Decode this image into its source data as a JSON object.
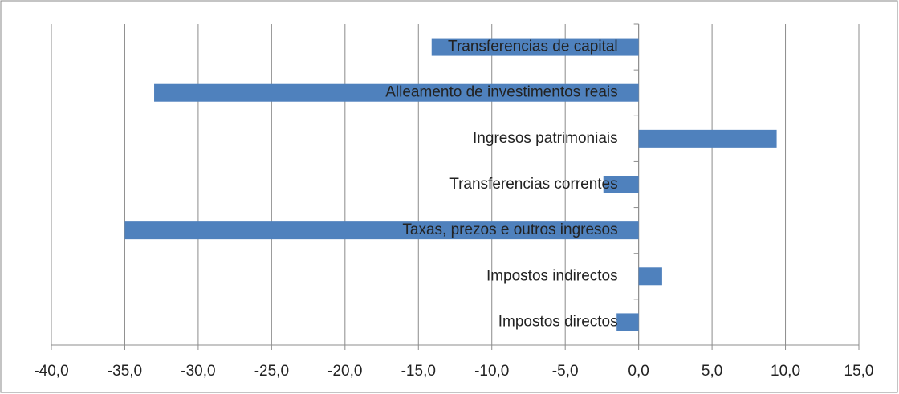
{
  "chart_data": {
    "type": "hbar",
    "categories": [
      "Impostos directos",
      "Impostos indirectos",
      "Taxas, prezos e outros ingresos",
      "Transferencias correntes",
      "Ingresos patrimoniais",
      "Alleamento de investimentos reais",
      "Transferencias de capital"
    ],
    "values": [
      -1.5,
      1.6,
      -35.0,
      -2.4,
      9.4,
      -33.0,
      -14.1
    ],
    "color": "#4f81bd",
    "xlim": [
      -40,
      15
    ],
    "xticks": [
      {
        "value": -40,
        "label": "-40,0"
      },
      {
        "value": -35,
        "label": "-35,0"
      },
      {
        "value": -30,
        "label": "-30,0"
      },
      {
        "value": -25,
        "label": "-25,0"
      },
      {
        "value": -20,
        "label": "-20,0"
      },
      {
        "value": -15,
        "label": "-15,0"
      },
      {
        "value": -10,
        "label": "-10,0"
      },
      {
        "value": -5,
        "label": "-5,0"
      },
      {
        "value": 0,
        "label": "0,0"
      },
      {
        "value": 5,
        "label": "5,0"
      },
      {
        "value": 10,
        "label": "10,0"
      },
      {
        "value": 15,
        "label": "15,0"
      }
    ],
    "grid": true
  }
}
